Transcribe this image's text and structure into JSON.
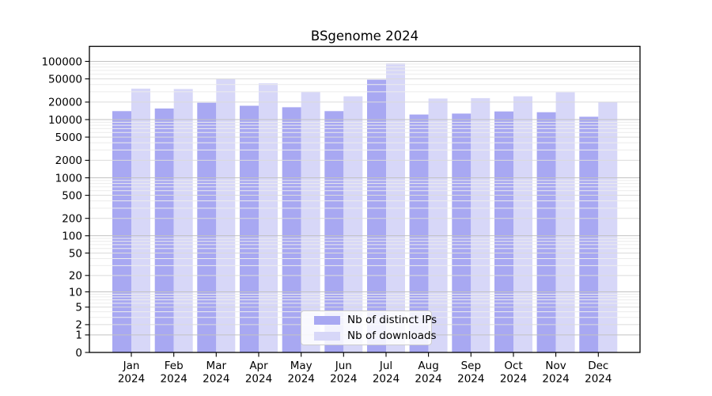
{
  "page": {
    "background": "#ffffff"
  },
  "chart_data": {
    "type": "bar",
    "title": "BSgenome 2024",
    "xlabel": "",
    "ylabel": "",
    "x_tick_year": "2024",
    "categories": [
      "Jan",
      "Feb",
      "Mar",
      "Apr",
      "May",
      "Jun",
      "Jul",
      "Aug",
      "Sep",
      "Oct",
      "Nov",
      "Dec"
    ],
    "series": [
      {
        "name": "Nb of distinct IPs",
        "color": "#a8a8f2",
        "values": [
          14000,
          15500,
          19500,
          17300,
          16300,
          14000,
          48500,
          12200,
          12700,
          13800,
          13400,
          11200
        ]
      },
      {
        "name": "Nb of downloads",
        "color": "#d7d7f8",
        "values": [
          34000,
          33500,
          50500,
          42000,
          30000,
          25100,
          93000,
          23000,
          23400,
          25100,
          29500,
          20000
        ]
      }
    ],
    "y_ticks": [
      100000,
      50000,
      20000,
      10000,
      5000,
      2000,
      1000,
      500,
      200,
      100,
      50,
      20,
      10,
      5,
      2,
      1,
      0
    ],
    "y_scale": "log10(value+1)",
    "ylim": [
      0,
      178000
    ],
    "grid": true,
    "grid_colors": {
      "decade": "#c2c2c2",
      "labeled": "#dbdbdb",
      "minor": "#ececec"
    },
    "legend_position": "inside-bottom-center"
  }
}
